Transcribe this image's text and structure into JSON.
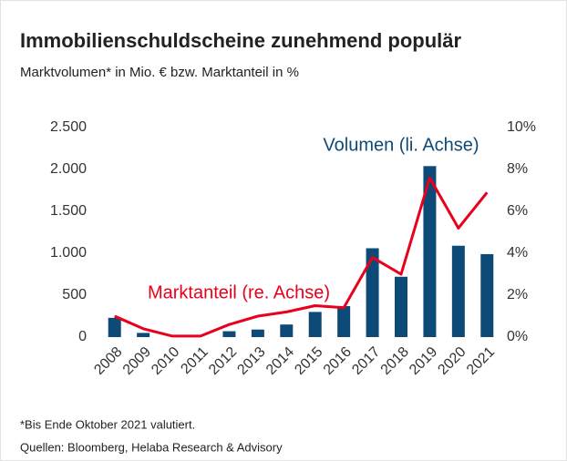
{
  "chart_data": {
    "type": "bar",
    "title": "Immobilienschuldscheine zunehmend populär",
    "subtitle": "Marktvolumen* in Mio. € bzw. Marktanteil in %",
    "categories": [
      "2008",
      "2009",
      "2010",
      "2011",
      "2012",
      "2013",
      "2014",
      "2015",
      "2016",
      "2017",
      "2018",
      "2019",
      "2020",
      "2021"
    ],
    "series": [
      {
        "name": "Volumen (li. Achse)",
        "type": "bar",
        "color": "#0d4a78",
        "values": [
          230,
          50,
          0,
          0,
          70,
          90,
          150,
          300,
          370,
          1060,
          720,
          2040,
          1090,
          990
        ]
      },
      {
        "name": "Marktanteil (re. Achse)",
        "type": "line",
        "axis": "y2",
        "color": "#e8001c",
        "values": [
          1.0,
          0.4,
          0.05,
          0.05,
          0.6,
          1.0,
          1.2,
          1.5,
          1.4,
          3.8,
          3.0,
          7.6,
          5.2,
          6.9
        ]
      }
    ],
    "ylim": [
      0,
      2500
    ],
    "yticks": [
      {
        "value": 0,
        "label": "0"
      },
      {
        "value": 500,
        "label": "500"
      },
      {
        "value": 1000,
        "label": "1.000"
      },
      {
        "value": 1500,
        "label": "1.500"
      },
      {
        "value": 2000,
        "label": "2.000"
      },
      {
        "value": 2500,
        "label": "2.500"
      }
    ],
    "y2lim": [
      0,
      10
    ],
    "y2ticks": [
      {
        "value": 0,
        "label": "0%"
      },
      {
        "value": 2,
        "label": "2%"
      },
      {
        "value": 4,
        "label": "4%"
      },
      {
        "value": 6,
        "label": "6%"
      },
      {
        "value": 8,
        "label": "8%"
      },
      {
        "value": 10,
        "label": "10%"
      }
    ],
    "grid": false,
    "footnote": "*Bis Ende Oktober 2021 valutiert.",
    "source": "Quellen: Bloomberg, Helaba Research & Advisory"
  }
}
